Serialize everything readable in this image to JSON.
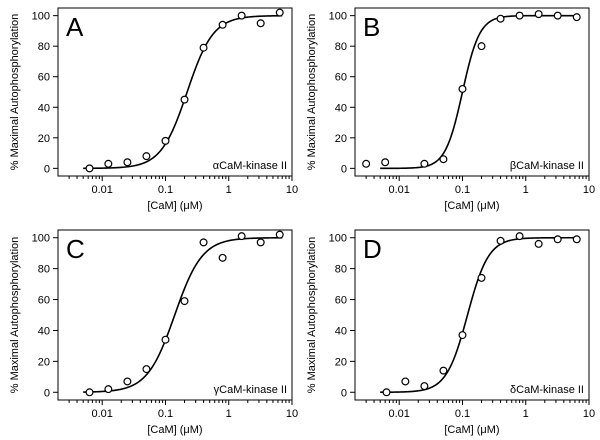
{
  "chart_data": [
    {
      "type": "scatter",
      "panel": "A",
      "annotation": "αCaM-kinase II",
      "xlabel": "[CaM] (μM)",
      "ylabel": "% Maximal Autophosphorylation",
      "xscale": "log",
      "xlim": [
        0.002,
        10
      ],
      "ylim": [
        -5,
        105
      ],
      "xticks": [
        0.01,
        0.1,
        1,
        10
      ],
      "xtick_labels": [
        "0.01",
        "0.1",
        "1",
        "10"
      ],
      "yticks": [
        0,
        20,
        40,
        60,
        80,
        100
      ],
      "ytick_labels": [
        "0",
        "20",
        "40",
        "60",
        "80",
        "100"
      ],
      "x": [
        0.0063,
        0.0125,
        0.025,
        0.05,
        0.1,
        0.2,
        0.4,
        0.8,
        1.6,
        3.2,
        6.4
      ],
      "values": [
        0,
        3,
        4,
        8,
        18,
        45,
        79,
        94,
        100,
        95,
        102
      ],
      "fit": {
        "ec50": 0.22,
        "hill": 2.1,
        "top": 100,
        "bottom": 0
      }
    },
    {
      "type": "scatter",
      "panel": "B",
      "annotation": "βCaM-kinase II",
      "xlabel": "[CaM] (μM)",
      "ylabel": "% Maximal Autophosphorylation",
      "xscale": "log",
      "xlim": [
        0.002,
        10
      ],
      "ylim": [
        -5,
        105
      ],
      "xticks": [
        0.01,
        0.1,
        1,
        10
      ],
      "xtick_labels": [
        "0.01",
        "0.1",
        "1",
        "10"
      ],
      "yticks": [
        0,
        20,
        40,
        60,
        80,
        100
      ],
      "ytick_labels": [
        "0",
        "20",
        "40",
        "60",
        "80",
        "100"
      ],
      "x": [
        0.003,
        0.006,
        0.025,
        0.05,
        0.1,
        0.2,
        0.4,
        0.8,
        1.6,
        3.2,
        6.4
      ],
      "values": [
        3,
        4,
        3,
        6,
        52,
        80,
        98,
        100,
        101,
        100,
        99
      ],
      "fit": {
        "ec50": 0.1,
        "hill": 3.2,
        "top": 100,
        "bottom": 0
      }
    },
    {
      "type": "scatter",
      "panel": "C",
      "annotation": "γCaM-kinase II",
      "xlabel": "[CaM] (μM)",
      "ylabel": "% Maximal Autophosphorylation",
      "xscale": "log",
      "xlim": [
        0.002,
        10
      ],
      "ylim": [
        -5,
        105
      ],
      "xticks": [
        0.01,
        0.1,
        1,
        10
      ],
      "xtick_labels": [
        "0.01",
        "0.1",
        "1",
        "10"
      ],
      "yticks": [
        0,
        20,
        40,
        60,
        80,
        100
      ],
      "ytick_labels": [
        "0",
        "20",
        "40",
        "60",
        "80",
        "100"
      ],
      "x": [
        0.0063,
        0.0125,
        0.025,
        0.05,
        0.1,
        0.2,
        0.4,
        0.8,
        1.6,
        3.2,
        6.4
      ],
      "values": [
        0,
        2,
        7,
        15,
        34,
        59,
        97,
        87,
        101,
        97,
        102
      ],
      "fit": {
        "ec50": 0.14,
        "hill": 2.0,
        "top": 100,
        "bottom": 0
      }
    },
    {
      "type": "scatter",
      "panel": "D",
      "annotation": "δCaM-kinase II",
      "xlabel": "[CaM] (μM)",
      "ylabel": "% Maximal Autophosphorylation",
      "xscale": "log",
      "xlim": [
        0.002,
        10
      ],
      "ylim": [
        -5,
        105
      ],
      "xticks": [
        0.01,
        0.1,
        1,
        10
      ],
      "xtick_labels": [
        "0.01",
        "0.1",
        "1",
        "10"
      ],
      "yticks": [
        0,
        20,
        40,
        60,
        80,
        100
      ],
      "ytick_labels": [
        "0",
        "20",
        "40",
        "60",
        "80",
        "100"
      ],
      "x": [
        0.0063,
        0.0125,
        0.025,
        0.05,
        0.1,
        0.2,
        0.4,
        0.8,
        1.6,
        3.2,
        6.4
      ],
      "values": [
        0,
        7,
        4,
        14,
        37,
        74,
        98,
        101,
        96,
        99,
        99
      ],
      "fit": {
        "ec50": 0.12,
        "hill": 2.6,
        "top": 100,
        "bottom": 0
      }
    }
  ]
}
